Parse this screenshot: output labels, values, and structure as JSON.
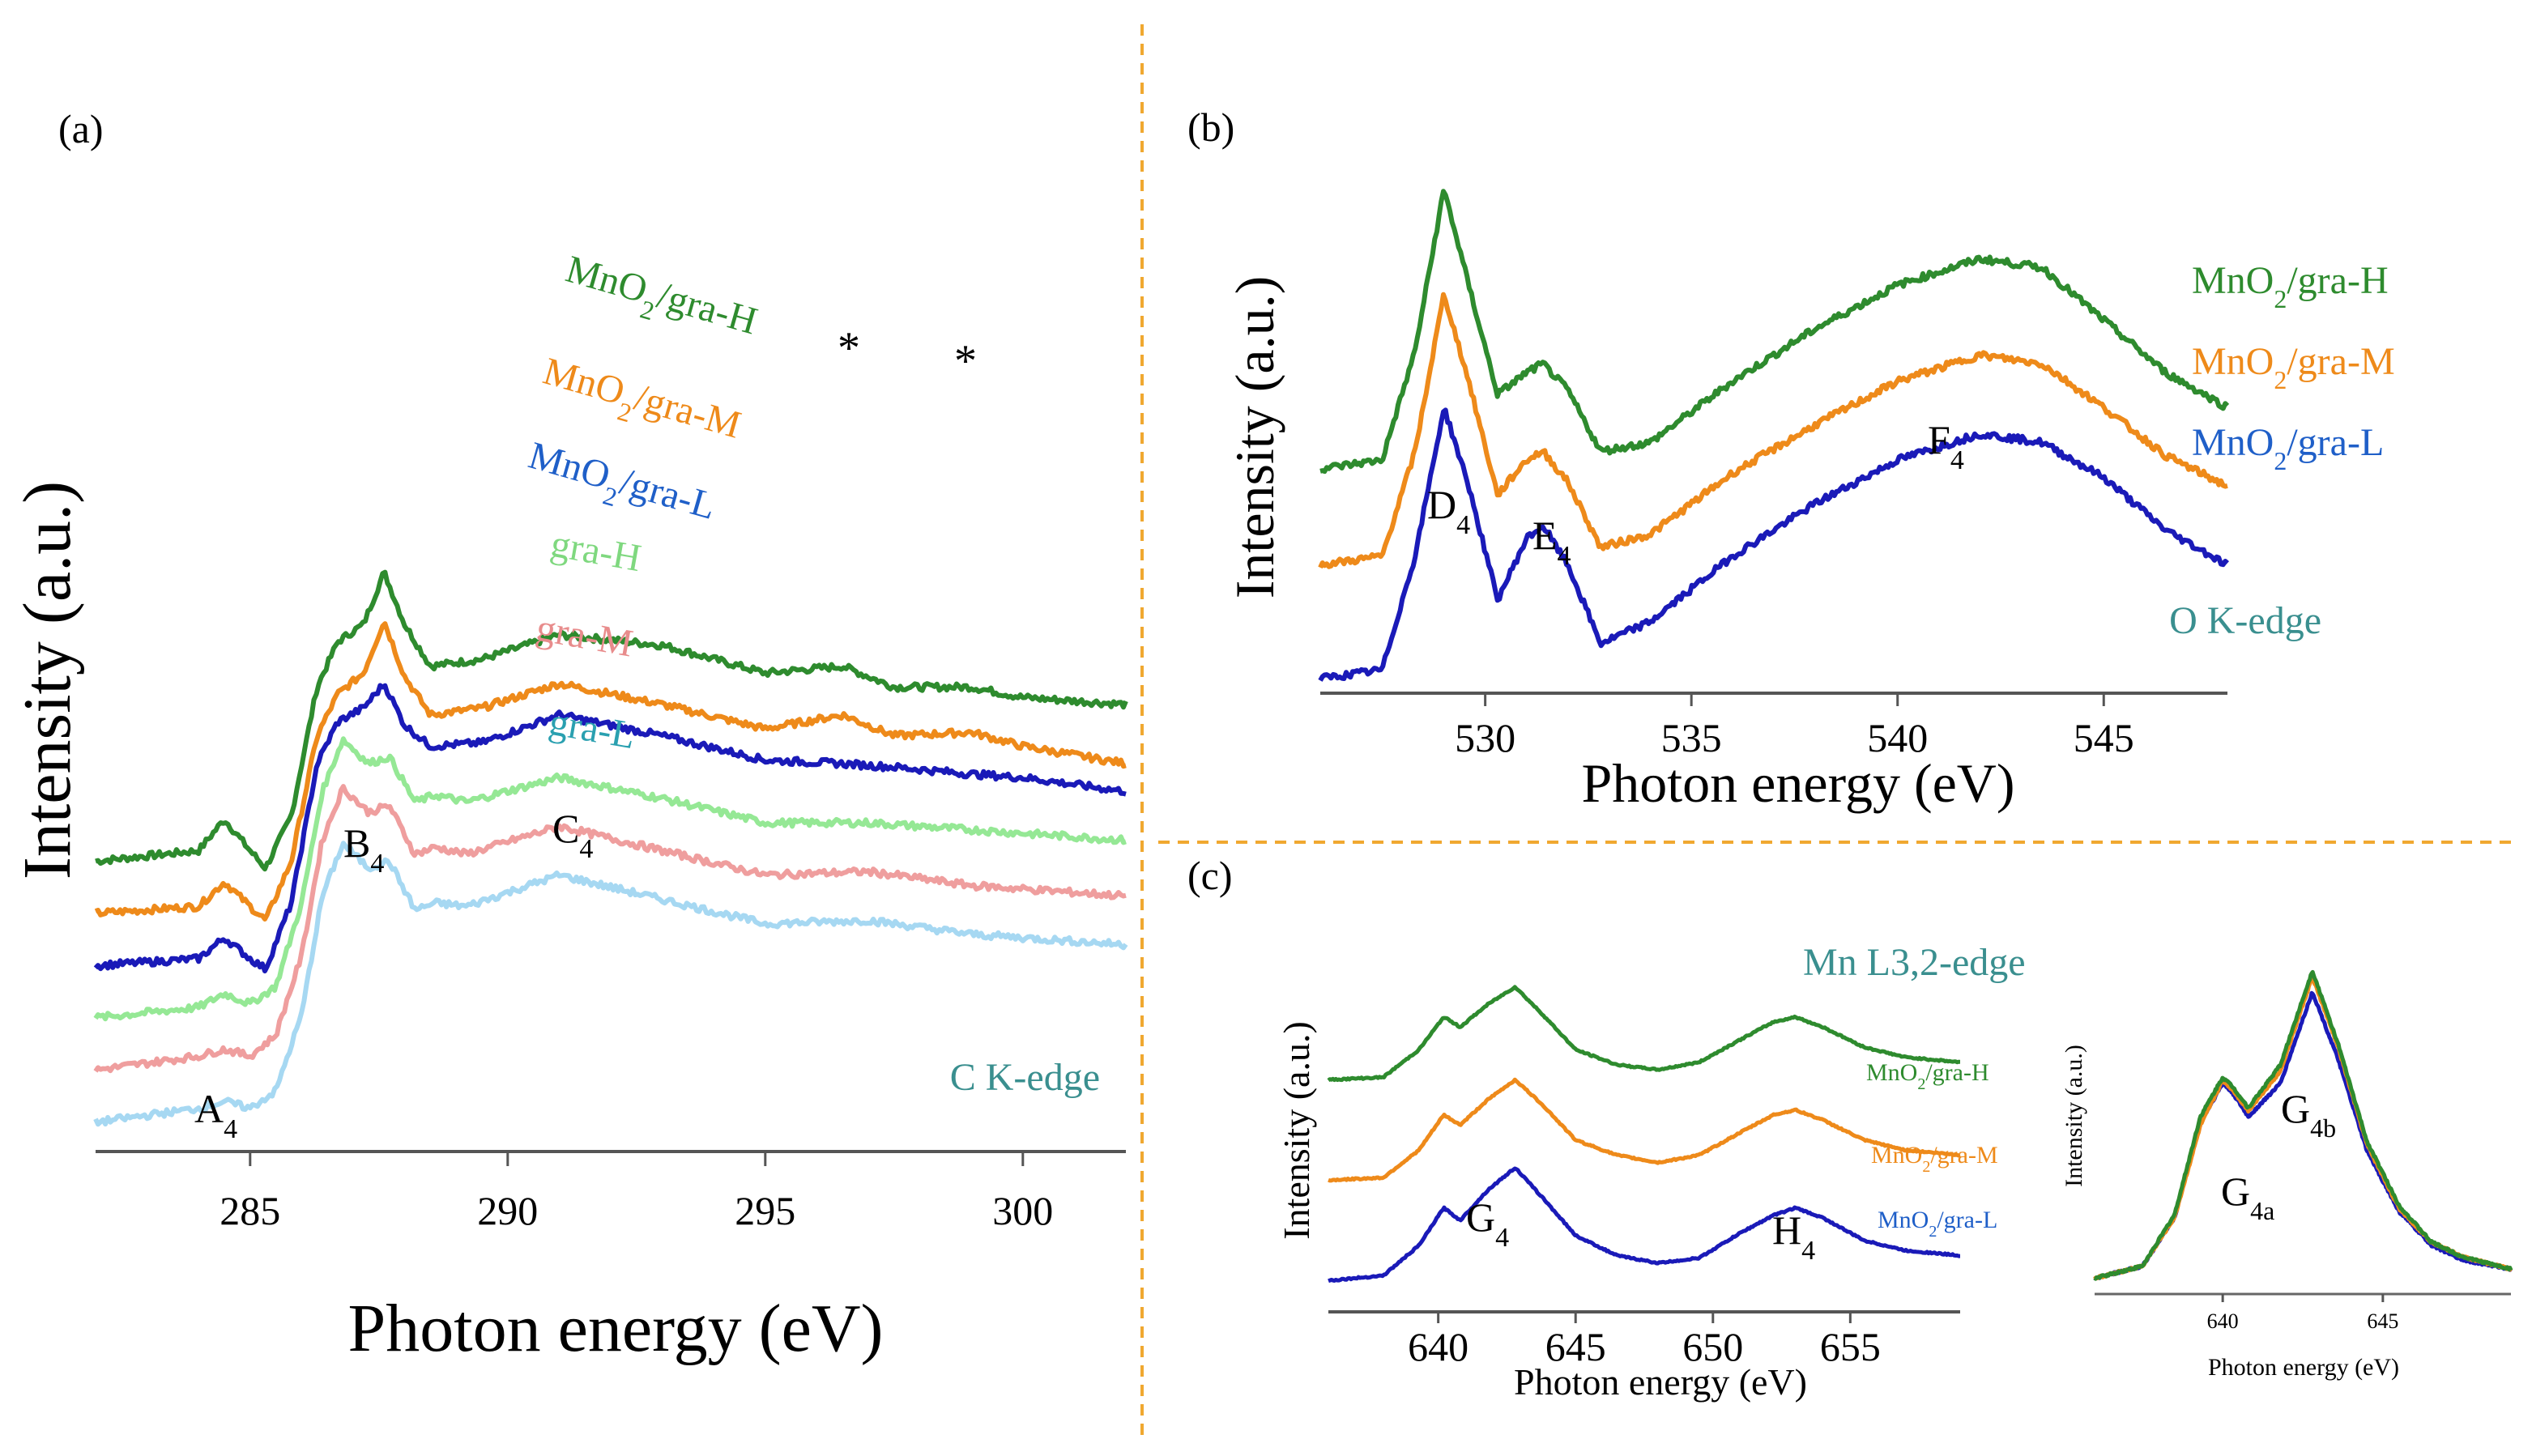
{
  "colors": {
    "gra_H_composite": "#2e8b2e",
    "gra_M_composite": "#ee8a1a",
    "gra_L_composite": "#1a1ab8",
    "gra_H": "#95e895",
    "gra_M": "#ef9e9e",
    "gra_L": "#a6d8f2",
    "edge_label": "#3a8f8f",
    "divider": "#f0a830",
    "label_blue": "#1f5fc8",
    "label_teal": "#2aa0b0",
    "label_light_green": "#7fd87f"
  },
  "chart_data": [
    {
      "panel": "(a)",
      "type": "line",
      "edge_label": "C K-edge",
      "xlabel": "Photon energy (eV)",
      "ylabel": "Intensity (a.u.)",
      "xlim": [
        282,
        302
      ],
      "xticks": [
        "285",
        "290",
        "295",
        "300"
      ],
      "series": [
        {
          "name": "MnO2/gra-H",
          "label_main": "MnO",
          "label_sub": "2",
          "label_rest": "/gra-H",
          "color": "#2e8b2e",
          "x": [
            282,
            284,
            284.5,
            285,
            285.3,
            285.8,
            286.3,
            286.7,
            287.2,
            287.6,
            288.0,
            288.5,
            289.5,
            291,
            293,
            295,
            296.5,
            297.5,
            299,
            300,
            302
          ],
          "y": [
            0.62,
            0.65,
            0.74,
            0.65,
            0.6,
            0.75,
            1.12,
            1.25,
            1.3,
            1.45,
            1.3,
            1.18,
            1.2,
            1.27,
            1.24,
            1.16,
            1.18,
            1.12,
            1.12,
            1.09,
            1.07
          ]
        },
        {
          "name": "MnO2/gra-M",
          "label_main": "MnO",
          "label_sub": "2",
          "label_rest": "/gra-M",
          "color": "#ee8a1a",
          "x": [
            282,
            284,
            284.5,
            285,
            285.3,
            285.8,
            286.3,
            286.7,
            287.2,
            287.6,
            288.0,
            288.5,
            289.5,
            291,
            293,
            295,
            296.5,
            297.5,
            299,
            300,
            302
          ],
          "y": [
            0.47,
            0.49,
            0.56,
            0.49,
            0.45,
            0.62,
            0.98,
            1.1,
            1.16,
            1.31,
            1.15,
            1.04,
            1.06,
            1.13,
            1.07,
            1.0,
            1.04,
            0.98,
            0.99,
            0.95,
            0.9
          ]
        },
        {
          "name": "MnO2/gra-L",
          "label_main": "MnO",
          "label_sub": "2",
          "label_rest": "/gra-L",
          "color": "#1a1ab8",
          "x": [
            282,
            284,
            284.5,
            285,
            285.3,
            285.8,
            286.3,
            286.7,
            287.2,
            287.6,
            288.0,
            288.5,
            289.5,
            291,
            293,
            295,
            296.5,
            297.5,
            299,
            300,
            302
          ],
          "y": [
            0.32,
            0.34,
            0.4,
            0.34,
            0.31,
            0.5,
            0.9,
            1.02,
            1.06,
            1.13,
            1.01,
            0.95,
            0.96,
            1.04,
            0.98,
            0.91,
            0.9,
            0.89,
            0.87,
            0.86,
            0.82
          ]
        },
        {
          "name": "gra-H",
          "label_main": "gra-H",
          "label_sub": "",
          "label_rest": "",
          "color": "#95e895",
          "x": [
            282,
            284,
            284.5,
            285,
            285.5,
            286.0,
            286.4,
            286.8,
            287.3,
            287.7,
            288.2,
            288.6,
            289.2,
            291,
            293,
            295,
            297,
            299,
            300,
            302
          ],
          "y": [
            0.17,
            0.2,
            0.24,
            0.21,
            0.26,
            0.5,
            0.82,
            0.97,
            0.9,
            0.92,
            0.79,
            0.81,
            0.79,
            0.86,
            0.8,
            0.73,
            0.73,
            0.71,
            0.7,
            0.68
          ]
        },
        {
          "name": "gra-M",
          "label_main": "gra-M",
          "label_sub": "",
          "label_rest": "",
          "color": "#ef9e9e",
          "x": [
            282,
            284,
            284.5,
            285,
            285.5,
            286.0,
            286.4,
            286.8,
            287.3,
            287.7,
            288.2,
            288.6,
            289.2,
            291,
            293,
            295,
            297,
            299,
            300,
            302
          ],
          "y": [
            0.02,
            0.06,
            0.08,
            0.06,
            0.12,
            0.35,
            0.68,
            0.83,
            0.76,
            0.78,
            0.64,
            0.66,
            0.64,
            0.72,
            0.65,
            0.58,
            0.59,
            0.55,
            0.54,
            0.52
          ]
        },
        {
          "name": "gra-L",
          "label_main": "gra-L",
          "label_sub": "",
          "label_rest": "",
          "color": "#a6d8f2",
          "x": [
            282,
            284,
            284.5,
            285,
            285.5,
            286.0,
            286.4,
            286.8,
            287.3,
            287.7,
            288.2,
            288.6,
            289.2,
            291,
            293,
            295,
            297,
            299,
            300,
            302
          ],
          "y": [
            -0.13,
            -0.09,
            -0.07,
            -0.09,
            -0.04,
            0.18,
            0.52,
            0.67,
            0.6,
            0.62,
            0.48,
            0.5,
            0.49,
            0.58,
            0.51,
            0.44,
            0.45,
            0.41,
            0.4,
            0.38
          ]
        }
      ],
      "annotations": [
        {
          "text": "A",
          "sub": "4",
          "x": 284.5
        },
        {
          "text": "B",
          "sub": "4",
          "x": 287.0
        },
        {
          "text": "C",
          "sub": "4",
          "x": 291.2
        },
        {
          "text": "*",
          "sub": "",
          "x": 296.5
        },
        {
          "text": "*",
          "sub": "",
          "x": 299.0
        }
      ]
    },
    {
      "panel": "(b)",
      "type": "line",
      "edge_label": "O K-edge",
      "xlabel": "Photon energy (eV)",
      "ylabel": "Intensity (a.u.)",
      "xlim": [
        526,
        548
      ],
      "xticks": [
        "530",
        "535",
        "540",
        "545"
      ],
      "series": [
        {
          "name": "MnO2/gra-H",
          "label_main": "MnO",
          "label_sub": "2",
          "label_rest": "/gra-H",
          "color": "#2e8b2e",
          "x": [
            526,
            527.5,
            528.3,
            529.0,
            529.6,
            530.3,
            531.0,
            531.4,
            532.0,
            532.8,
            534,
            536,
            538,
            540,
            542,
            543.5,
            545,
            546.5,
            548
          ],
          "y": [
            0.78,
            0.8,
            1.05,
            1.42,
            1.2,
            0.95,
            1.0,
            1.02,
            0.96,
            0.82,
            0.84,
            0.98,
            1.1,
            1.2,
            1.26,
            1.24,
            1.12,
            1.0,
            0.92
          ]
        },
        {
          "name": "MnO2/gra-M",
          "label_main": "MnO",
          "label_sub": "2",
          "label_rest": "/gra-M",
          "color": "#ee8a1a",
          "x": [
            526,
            527.5,
            528.3,
            529.0,
            529.6,
            530.3,
            531.0,
            531.4,
            532.0,
            532.8,
            534,
            536,
            538,
            540,
            542,
            543.5,
            545,
            546.5,
            548
          ],
          "y": [
            0.56,
            0.58,
            0.82,
            1.18,
            0.98,
            0.72,
            0.8,
            0.82,
            0.75,
            0.6,
            0.63,
            0.77,
            0.88,
            0.98,
            1.04,
            1.02,
            0.92,
            0.81,
            0.74
          ]
        },
        {
          "name": "MnO2/gra-L",
          "label_main": "MnO",
          "label_sub": "2",
          "label_rest": "/gra-L",
          "color": "#1a1ab8",
          "x": [
            526,
            527.5,
            528.3,
            529.0,
            529.6,
            530.3,
            531.0,
            531.4,
            532.0,
            532.8,
            534,
            536,
            538,
            540,
            542,
            543.5,
            545,
            546.5,
            548
          ],
          "y": [
            0.3,
            0.32,
            0.58,
            0.92,
            0.74,
            0.48,
            0.62,
            0.65,
            0.56,
            0.38,
            0.43,
            0.58,
            0.7,
            0.8,
            0.86,
            0.84,
            0.76,
            0.64,
            0.56
          ]
        }
      ],
      "annotations": [
        {
          "text": "D",
          "sub": "4",
          "x": 529.2
        },
        {
          "text": "E",
          "sub": "4",
          "x": 531.4
        },
        {
          "text": "F",
          "sub": "4",
          "x": 541.0
        }
      ]
    },
    {
      "panel": "(c)",
      "type": "line",
      "edge_label": "Mn L3,2-edge",
      "xlabel": "Photon energy (eV)",
      "ylabel": "Intensity (a.u.)",
      "xlim": [
        636,
        659
      ],
      "xticks": [
        "640",
        "645",
        "650",
        "655"
      ],
      "series": [
        {
          "name": "MnO2/gra-H",
          "label_main": "MnO",
          "label_sub": "2",
          "label_rest": "/gra-H",
          "color": "#2e8b2e",
          "x": [
            636,
            638,
            639.3,
            640.2,
            640.8,
            641.8,
            642.8,
            643.8,
            645,
            646.5,
            648,
            649.5,
            651,
            652.2,
            653.0,
            654,
            655.5,
            657,
            659
          ],
          "y": [
            0.86,
            0.87,
            0.98,
            1.11,
            1.07,
            1.16,
            1.23,
            1.12,
            0.98,
            0.92,
            0.9,
            0.93,
            1.02,
            1.09,
            1.11,
            1.07,
            0.99,
            0.95,
            0.93
          ]
        },
        {
          "name": "MnO2/gra-M",
          "label_main": "MnO",
          "label_sub": "2",
          "label_rest": "/gra-M",
          "color": "#ee8a1a",
          "x": [
            636,
            638,
            639.3,
            640.2,
            640.8,
            641.8,
            642.8,
            643.8,
            645,
            646.5,
            648,
            649.5,
            651,
            652.2,
            653.0,
            654,
            655.5,
            657,
            659
          ],
          "y": [
            0.46,
            0.47,
            0.58,
            0.72,
            0.68,
            0.78,
            0.86,
            0.76,
            0.62,
            0.56,
            0.53,
            0.56,
            0.65,
            0.72,
            0.74,
            0.7,
            0.62,
            0.58,
            0.56
          ]
        },
        {
          "name": "MnO2/gra-L",
          "label_main": "MnO",
          "label_sub": "2",
          "label_rest": "/gra-L",
          "color": "#1a1ab8",
          "x": [
            636,
            638,
            639.3,
            640.2,
            640.8,
            641.8,
            642.8,
            643.8,
            645,
            646.5,
            648,
            649.5,
            651,
            652.2,
            653.0,
            654,
            655.5,
            657,
            659
          ],
          "y": [
            0.06,
            0.08,
            0.2,
            0.35,
            0.3,
            0.42,
            0.51,
            0.39,
            0.24,
            0.16,
            0.13,
            0.15,
            0.25,
            0.32,
            0.35,
            0.31,
            0.22,
            0.18,
            0.16
          ]
        }
      ],
      "annotations": [
        {
          "text": "G",
          "sub": "4",
          "x": 642.0
        },
        {
          "text": "H",
          "sub": "4",
          "x": 653.0
        }
      ]
    },
    {
      "panel": "(c) inset",
      "type": "line",
      "xlabel": "Photon energy (eV)",
      "ylabel": "Intensity (a.u.)",
      "xlim": [
        636,
        649
      ],
      "xticks": [
        "640",
        "645"
      ],
      "series": [
        {
          "name": "MnO2/gra-L",
          "color": "#1a1ab8",
          "x": [
            636,
            637.5,
            638.5,
            639.3,
            640.0,
            640.3,
            640.8,
            641.8,
            642.8,
            643.6,
            644.5,
            645.5,
            646.5,
            647.5,
            649
          ],
          "y": [
            0.02,
            0.06,
            0.22,
            0.53,
            0.66,
            0.63,
            0.55,
            0.66,
            0.96,
            0.74,
            0.44,
            0.24,
            0.13,
            0.08,
            0.05
          ]
        },
        {
          "name": "MnO2/gra-M",
          "color": "#ee8a1a",
          "x": [
            636,
            637.5,
            638.5,
            639.3,
            640.0,
            640.3,
            640.8,
            641.8,
            642.8,
            643.6,
            644.5,
            645.5,
            646.5,
            647.5,
            649
          ],
          "y": [
            0.02,
            0.06,
            0.22,
            0.52,
            0.67,
            0.64,
            0.57,
            0.7,
            1.01,
            0.78,
            0.46,
            0.25,
            0.14,
            0.09,
            0.05
          ]
        },
        {
          "name": "MnO2/gra-H",
          "color": "#2e8b2e",
          "x": [
            636,
            637.5,
            638.5,
            639.3,
            640.0,
            640.3,
            640.8,
            641.8,
            642.8,
            643.6,
            644.5,
            645.5,
            646.5,
            647.5,
            649
          ],
          "y": [
            0.02,
            0.06,
            0.23,
            0.55,
            0.68,
            0.65,
            0.58,
            0.72,
            1.03,
            0.79,
            0.47,
            0.26,
            0.14,
            0.09,
            0.05
          ]
        }
      ],
      "annotations": [
        {
          "text": "G",
          "sub": "4a",
          "x": 640.0
        },
        {
          "text": "G",
          "sub": "4b",
          "x": 642.6
        }
      ]
    }
  ]
}
